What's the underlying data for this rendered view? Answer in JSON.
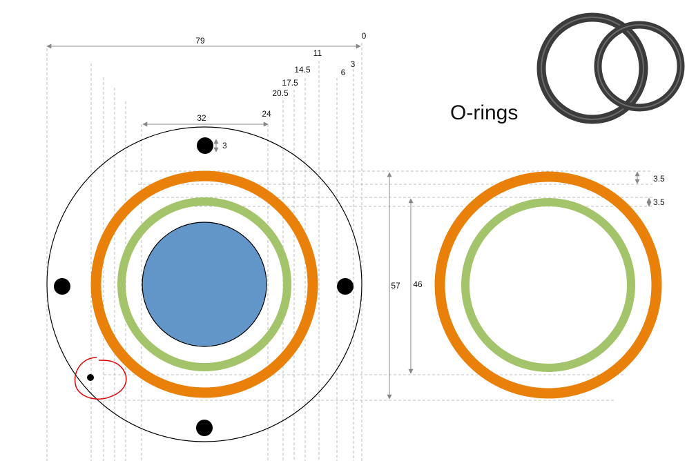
{
  "title": "O-rings",
  "colors": {
    "outer_ring": "#e8800a",
    "inner_ring": "#a3c46a",
    "core": "#6396c8",
    "holes": "#000000",
    "dim_lines": "#999999",
    "guide_lines": "#aaaaaa",
    "annotation": "#e00000",
    "photo_ring": "#3b3b3b"
  },
  "top_scale": {
    "overall": "79",
    "zero": "0",
    "labels": [
      "11",
      "14.5",
      "17.5",
      "20.5",
      "6",
      "3"
    ]
  },
  "dimensions": {
    "width_32": "32",
    "offset_24": "24",
    "hole_3": "3",
    "height_57": "57",
    "height_46": "46",
    "ring_35_outer": "3.5",
    "ring_35_inner": "3.5"
  },
  "icons": {
    "photo": "o-rings-photo",
    "arrow": "double-arrow-icon"
  }
}
